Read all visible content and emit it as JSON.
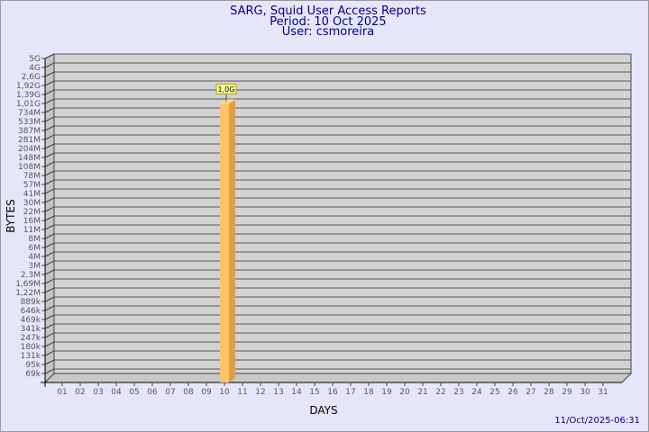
{
  "chart_data": {
    "type": "bar",
    "title": [
      "SARG, Squid User Access Reports",
      "Period: 10 Oct 2025",
      "User: csmoreira"
    ],
    "xlabel": "DAYS",
    "ylabel": "BYTES",
    "yscale": "log",
    "y_ticks": [
      "5G",
      "4G",
      "2,6G",
      "1,92G",
      "1,39G",
      "1,01G",
      "734M",
      "533M",
      "387M",
      "281M",
      "204M",
      "148M",
      "108M",
      "78M",
      "57M",
      "41M",
      "30M",
      "22M",
      "16M",
      "11M",
      "8M",
      "6M",
      "4M",
      "3M",
      "2,3M",
      "1,69M",
      "1,22M",
      "889k",
      "646k",
      "469k",
      "341k",
      "247k",
      "180k",
      "131k",
      "95k",
      "69k"
    ],
    "categories": [
      "01",
      "02",
      "03",
      "04",
      "05",
      "06",
      "07",
      "08",
      "09",
      "10",
      "11",
      "12",
      "13",
      "14",
      "15",
      "16",
      "17",
      "18",
      "19",
      "20",
      "21",
      "22",
      "23",
      "24",
      "25",
      "26",
      "27",
      "28",
      "29",
      "30",
      "31"
    ],
    "bars": [
      {
        "category": "10",
        "value": 1000000000,
        "label": "1,0G"
      }
    ],
    "grid": true,
    "colors": {
      "background": "#e6e6fa",
      "plot": "#d3d3d3",
      "bar_front": "#ffc466",
      "bar_side": "#e0a040",
      "bar_top": "#ffe08a",
      "title": "#00008b"
    }
  },
  "footer": {
    "timestamp": "11/Oct/2025-06:31"
  }
}
